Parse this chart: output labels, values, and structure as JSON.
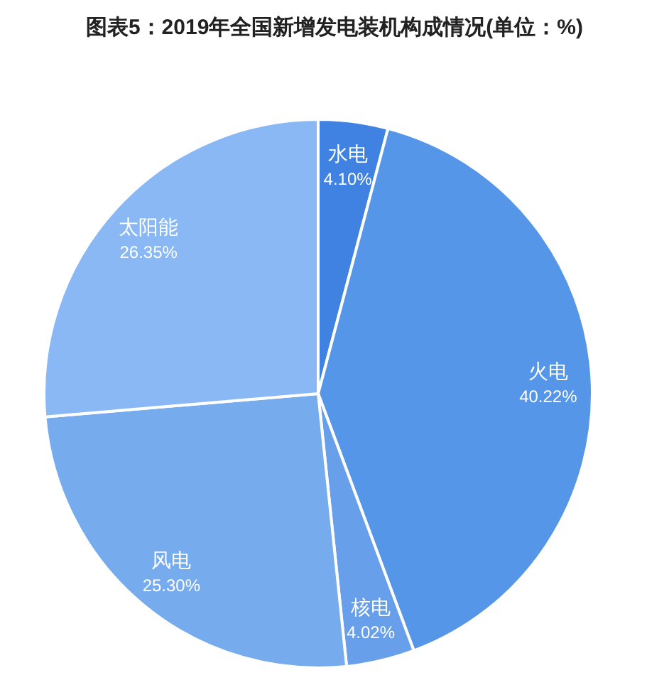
{
  "chart_data": {
    "type": "pie",
    "title": "图表5：2019年全国新增发电装机构成情况(单位：%)",
    "categories": [
      "水电",
      "火电",
      "核电",
      "风电",
      "太阳能"
    ],
    "values": [
      4.1,
      40.22,
      4.02,
      25.3,
      26.35
    ],
    "value_labels": [
      "4.10%",
      "40.22%",
      "4.02%",
      "25.30%",
      "26.35%"
    ],
    "colors": [
      "#3f82e2",
      "#5596e8",
      "#679fea",
      "#76abee",
      "#89b8f4"
    ]
  }
}
